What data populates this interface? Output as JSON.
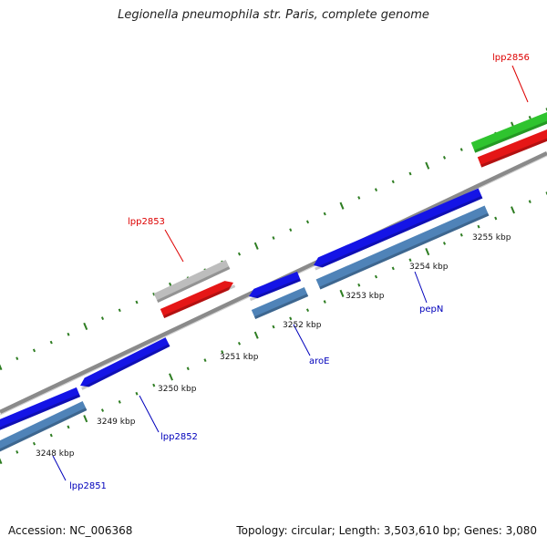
{
  "title": "Legionella pneumophila str. Paris, complete genome",
  "footer": {
    "accession": "Accession: NC_006368",
    "summary": "Topology: circular; Length: 3,503,610 bp; Genes: 3,080"
  },
  "colors": {
    "backbone": "#8a8a8a",
    "tick": "#2e7d22",
    "gene_blue": "#1414e6",
    "cds_steelblue": "#4f83b8",
    "gene_red": "#e51616",
    "gene_grey": "#bdbdbd",
    "gene_green": "#2fc42f",
    "label_red": "#dd0000",
    "label_blue": "#0000bb"
  },
  "scale": {
    "ticks": [
      "3248 kbp",
      "3249 kbp",
      "3250 kbp",
      "3251 kbp",
      "3252 kbp",
      "3253 kbp",
      "3254 kbp",
      "3255 kbp"
    ]
  },
  "genes": [
    {
      "name": "lpp2851",
      "color": "label_blue",
      "strand": "reverse",
      "feature": "blue"
    },
    {
      "name": "lpp2852",
      "color": "label_blue",
      "strand": "reverse",
      "feature": "blue"
    },
    {
      "name": "aroE",
      "color": "label_blue",
      "strand": "reverse",
      "feature": "blue"
    },
    {
      "name": "pepN",
      "color": "label_blue",
      "strand": "reverse",
      "feature": "blue"
    },
    {
      "name": "lpp2853",
      "color": "label_red",
      "strand": "forward",
      "feature": "red/grey"
    },
    {
      "name": "lpp2856",
      "color": "label_red",
      "strand": "forward",
      "feature": "red/green"
    }
  ]
}
